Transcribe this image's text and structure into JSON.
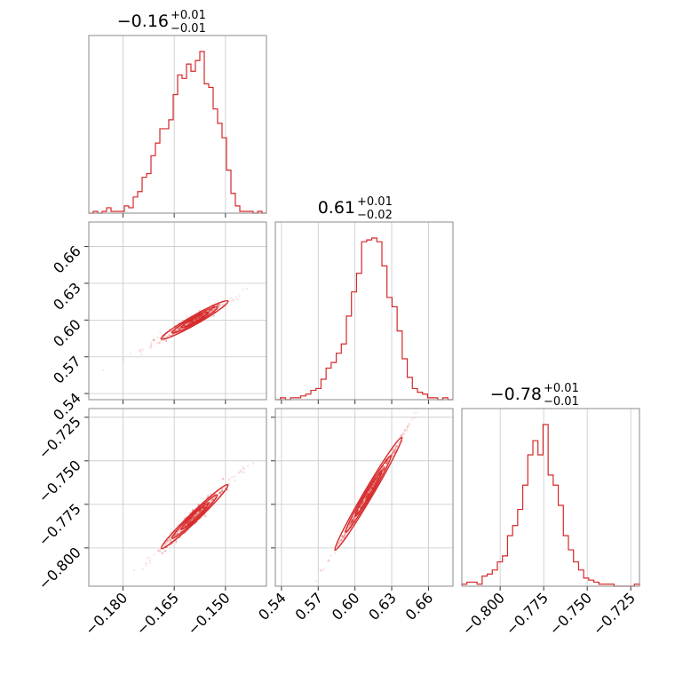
{
  "chart_data": {
    "type": "corner",
    "color": "#d62728",
    "params": [
      {
        "median": -0.16,
        "title": {
          "value": "−0.16",
          "plus": "+0.01",
          "minus": "−0.01"
        },
        "range": [
          -0.19,
          -0.138
        ],
        "ticks": [
          -0.18,
          -0.165,
          -0.15
        ],
        "tick_labels": [
          "−0.180",
          "−0.165",
          "−0.150"
        ],
        "hist": {
          "bin_edges_range": [
            -0.19,
            -0.138
          ],
          "counts": [
            0,
            1,
            0,
            1,
            3,
            1,
            1,
            1,
            4,
            3,
            9,
            12,
            20,
            22,
            32,
            39,
            47,
            47,
            52,
            66,
            77,
            75,
            83,
            79,
            85,
            90,
            72,
            70,
            58,
            50,
            42,
            24,
            11,
            4,
            1,
            1,
            1,
            0,
            1,
            0
          ]
        }
      },
      {
        "median": 0.61,
        "title": {
          "value": "0.61",
          "plus": "+0.01",
          "minus": "−0.02"
        },
        "range": [
          0.535,
          0.68
        ],
        "ticks": [
          0.54,
          0.57,
          0.6,
          0.63,
          0.66
        ],
        "tick_labels": [
          "0.54",
          "0.57",
          "0.60",
          "0.63",
          "0.66"
        ],
        "hist": {
          "bin_edges_range": [
            0.535,
            0.68
          ],
          "counts": [
            0,
            1,
            0,
            1,
            1,
            2,
            3,
            5,
            6,
            11,
            17,
            20,
            25,
            30,
            45,
            58,
            68,
            85,
            86,
            87,
            85,
            72,
            55,
            50,
            37,
            22,
            12,
            6,
            4,
            3,
            1,
            1,
            0,
            1,
            0
          ]
        }
      },
      {
        "median": -0.78,
        "title": {
          "value": "−0.78",
          "plus": "+0.01",
          "minus": "−0.01"
        },
        "range": [
          -0.822,
          -0.72
        ],
        "ticks": [
          -0.8,
          -0.775,
          -0.75,
          -0.725
        ],
        "tick_labels": [
          "−0.800",
          "−0.775",
          "−0.750",
          "−0.725"
        ],
        "hist": {
          "bin_edges_range": [
            -0.822,
            -0.72
          ],
          "counts": [
            1,
            2,
            2,
            1,
            5,
            6,
            8,
            12,
            15,
            25,
            30,
            38,
            50,
            65,
            72,
            65,
            80,
            55,
            50,
            40,
            25,
            18,
            12,
            8,
            4,
            3,
            2,
            1,
            1,
            1,
            0,
            0,
            0,
            0,
            1
          ]
        }
      }
    ],
    "pairs": [
      {
        "x_param": 0,
        "y_param": 1,
        "relation": "y = 0.60 + 1.58*(x + 0.159)",
        "spread": 0.002
      },
      {
        "x_param": 0,
        "y_param": 2,
        "relation": "y = -0.782 + 1.88*(x + 0.159)",
        "spread": 0.002
      },
      {
        "x_param": 1,
        "y_param": 2,
        "relation": "y = -0.782 + 1.19*(x - 0.60)",
        "spread": 0.0012
      }
    ],
    "grid": true
  }
}
